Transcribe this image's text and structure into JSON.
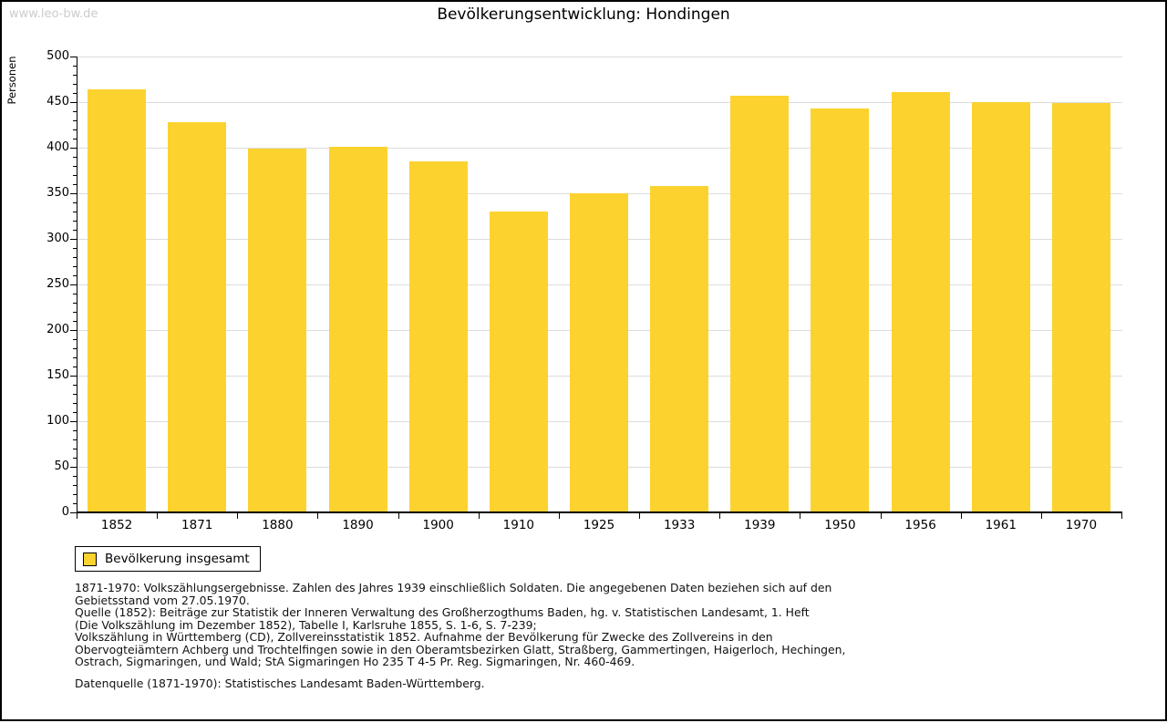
{
  "watermark": "www.leo-bw.de",
  "title": "Bevölkerungsentwicklung: Hondingen",
  "chart_data": {
    "type": "bar",
    "title": "Bevölkerungsentwicklung: Hondingen",
    "xlabel": "",
    "ylabel": "Personen",
    "categories": [
      "1852",
      "1871",
      "1880",
      "1890",
      "1900",
      "1910",
      "1925",
      "1933",
      "1939",
      "1950",
      "1956",
      "1961",
      "1970"
    ],
    "values": [
      464,
      428,
      399,
      401,
      385,
      330,
      350,
      358,
      457,
      443,
      461,
      450,
      449
    ],
    "series_name": "Bevölkerung insgesamt",
    "ylim": [
      0,
      500
    ],
    "ytick_step": 50,
    "minor_tick_step": 10,
    "grid": true,
    "legend_position": "bottom-left",
    "bar_color": "#FCD22F"
  },
  "colors": {
    "bar": "#FCD22F",
    "grid": "#DCDCDC",
    "watermark": "#CCCCCC"
  },
  "legend": {
    "label": "Bevölkerung insgesamt"
  },
  "footnotes": [
    "1871-1970: Volkszählungsergebnisse. Zahlen des Jahres 1939 einschließlich Soldaten. Die angegebenen Daten beziehen sich auf den",
    "Gebietsstand vom 27.05.1970.",
    "Quelle (1852): Beiträge zur Statistik der Inneren Verwaltung des Großherzogthums Baden, hg. v. Statistischen Landesamt, 1. Heft",
    "(Die Volkszählung im Dezember 1852), Tabelle I, Karlsruhe 1855, S. 1-6, S. 7-239;",
    "Volkszählung in Württemberg (CD), Zollvereinsstatistik 1852. Aufnahme der Bevölkerung für Zwecke des Zollvereins in den",
    "Obervogteiämtern Achberg und Trochtelfingen sowie in den Oberamtsbezirken Glatt, Straßberg, Gammertingen, Haigerloch, Hechingen,",
    "Ostrach, Sigmaringen, und Wald; StA Sigmaringen Ho 235 T 4-5 Pr. Reg. Sigmaringen, Nr. 460-469."
  ],
  "datasource": "Datenquelle (1871-1970): Statistisches Landesamt Baden-Württemberg."
}
